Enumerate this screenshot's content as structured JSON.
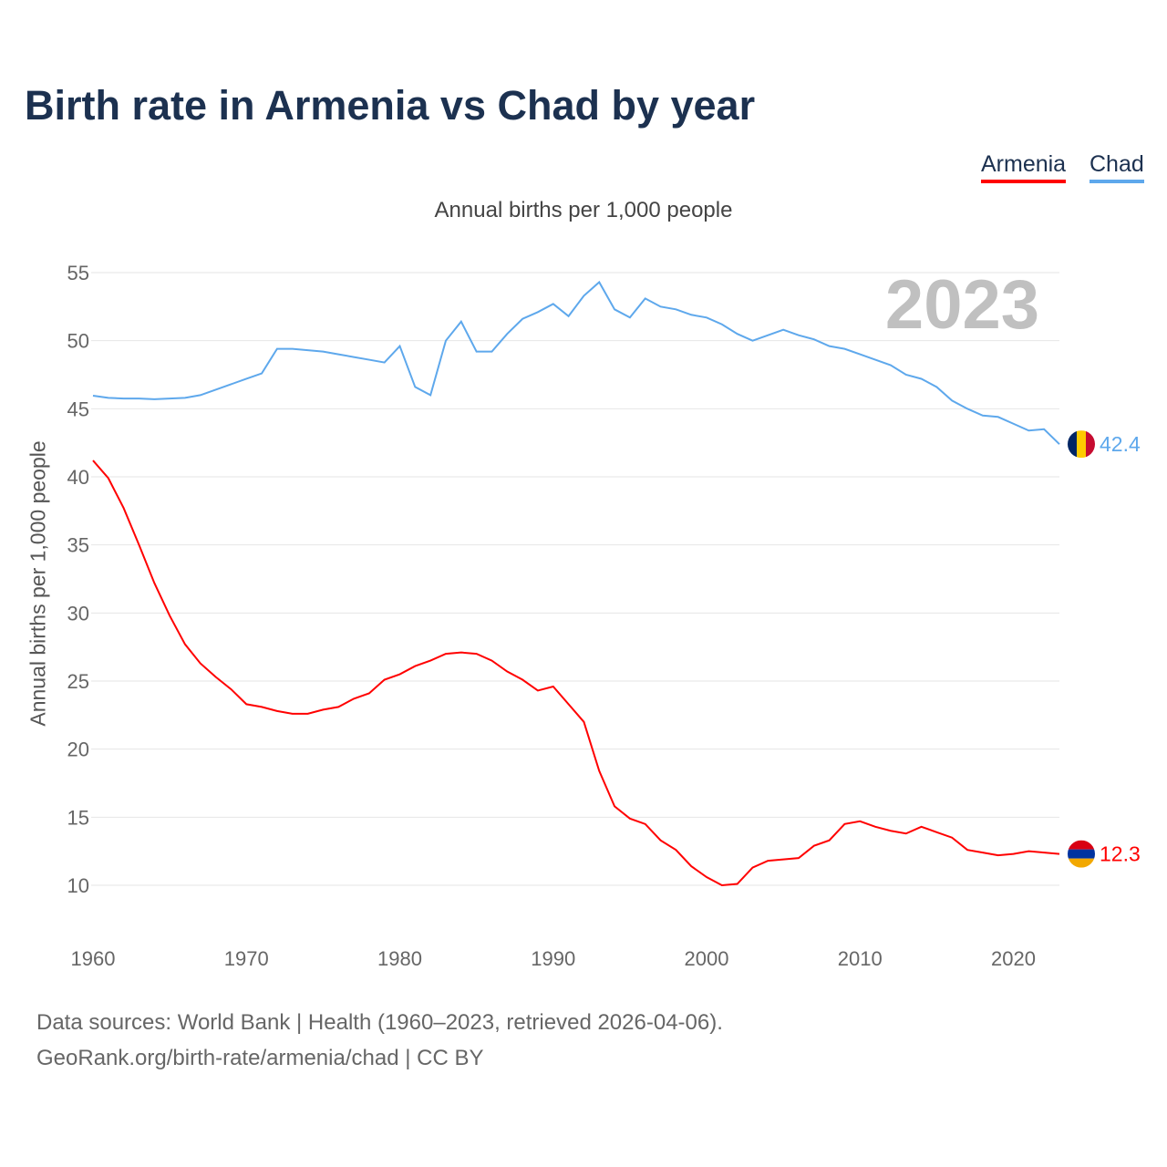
{
  "title": "Birth rate in Armenia vs Chad by year",
  "subtitle": "Annual births per 1,000 people",
  "legend": [
    {
      "name": "Armenia",
      "color": "#ff0000"
    },
    {
      "name": "Chad",
      "color": "#5ea8ec"
    }
  ],
  "year_watermark": "2023",
  "sources": {
    "line1": "Data sources: World Bank | Health (1960–2023, retrieved 2026-04-06).",
    "line2": "GeoRank.org/birth-rate/armenia/chad | CC BY"
  },
  "chart_data": {
    "type": "line",
    "title": "Birth rate in Armenia vs Chad by year",
    "xlabel": "",
    "ylabel": "Annual births per 1,000 people",
    "xlim": [
      1960,
      2023
    ],
    "ylim": [
      10,
      55
    ],
    "x_ticks": [
      "1960",
      "1970",
      "1980",
      "1990",
      "2000",
      "2010",
      "2020"
    ],
    "y_ticks": [
      "10",
      "15",
      "20",
      "25",
      "30",
      "35",
      "40",
      "45",
      "50",
      "55"
    ],
    "grid": true,
    "legend_position": "top-right",
    "x": [
      1960,
      1961,
      1962,
      1963,
      1964,
      1965,
      1966,
      1967,
      1968,
      1969,
      1970,
      1971,
      1972,
      1973,
      1974,
      1975,
      1976,
      1977,
      1978,
      1979,
      1980,
      1981,
      1982,
      1983,
      1984,
      1985,
      1986,
      1987,
      1988,
      1989,
      1990,
      1991,
      1992,
      1993,
      1994,
      1995,
      1996,
      1997,
      1998,
      1999,
      2000,
      2001,
      2002,
      2003,
      2004,
      2005,
      2006,
      2007,
      2008,
      2009,
      2010,
      2011,
      2012,
      2013,
      2014,
      2015,
      2016,
      2017,
      2018,
      2019,
      2020,
      2021,
      2022,
      2023
    ],
    "series": [
      {
        "name": "Armenia",
        "color": "#ff0000",
        "end_label": "12.3",
        "values": [
          41.2,
          39.9,
          37.7,
          35.0,
          32.2,
          29.8,
          27.7,
          26.3,
          25.3,
          24.4,
          23.3,
          23.1,
          22.8,
          22.6,
          22.6,
          22.9,
          23.1,
          23.7,
          24.1,
          25.1,
          25.5,
          26.1,
          26.5,
          27.0,
          27.1,
          27.0,
          26.5,
          25.7,
          25.1,
          24.3,
          24.6,
          23.3,
          22.0,
          18.4,
          15.8,
          14.9,
          14.5,
          13.3,
          12.6,
          11.4,
          10.6,
          10.0,
          10.1,
          11.3,
          11.8,
          11.9,
          12.0,
          12.9,
          13.3,
          14.5,
          14.7,
          14.3,
          14.0,
          13.8,
          14.3,
          13.9,
          13.5,
          12.6,
          12.4,
          12.2,
          12.3,
          12.5,
          12.4,
          12.3
        ]
      },
      {
        "name": "Chad",
        "color": "#5ea8ec",
        "end_label": "42.4",
        "values": [
          45.96,
          45.8,
          45.75,
          45.75,
          45.7,
          45.75,
          45.8,
          46.0,
          46.4,
          46.8,
          47.2,
          47.6,
          49.4,
          49.4,
          49.3,
          49.2,
          49.0,
          48.8,
          48.6,
          48.4,
          49.6,
          46.6,
          46.0,
          50.0,
          51.4,
          49.2,
          49.2,
          50.5,
          51.6,
          52.1,
          52.7,
          51.8,
          53.3,
          54.3,
          52.3,
          51.7,
          53.1,
          52.5,
          52.3,
          51.9,
          51.7,
          51.2,
          50.5,
          50.0,
          50.4,
          50.8,
          50.4,
          50.1,
          49.6,
          49.4,
          49.0,
          48.6,
          48.2,
          47.5,
          47.2,
          46.6,
          45.6,
          45.0,
          44.5,
          44.4,
          43.9,
          43.4,
          43.5,
          42.4
        ]
      }
    ]
  }
}
